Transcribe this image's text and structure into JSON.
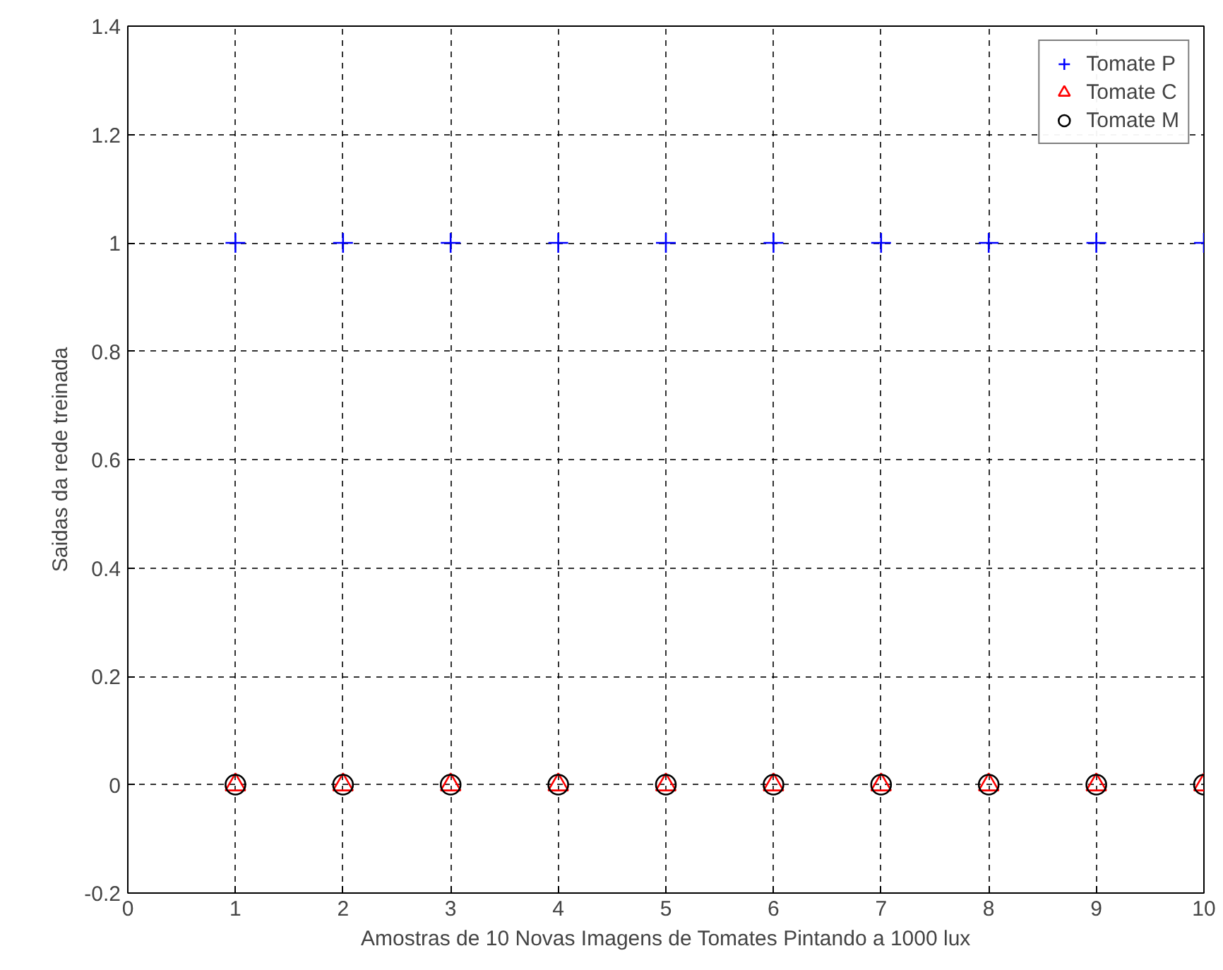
{
  "chart_data": {
    "type": "scatter",
    "xlabel": "Amostras de 10 Novas Imagens de Tomates Pintando a 1000 lux",
    "ylabel": "Saidas da rede treinada",
    "x": [
      1,
      2,
      3,
      4,
      5,
      6,
      7,
      8,
      9,
      10
    ],
    "series": [
      {
        "name": "Tomate P",
        "color": "#0000ff",
        "marker": "cross",
        "values": [
          1,
          1,
          1,
          1,
          1,
          1,
          1,
          1,
          1,
          1
        ]
      },
      {
        "name": "Tomate C",
        "color": "#ff0000",
        "marker": "triangle",
        "values": [
          0,
          0,
          0,
          0,
          0,
          0,
          0,
          0,
          0,
          0
        ]
      },
      {
        "name": "Tomate M",
        "color": "#000000",
        "marker": "circle",
        "values": [
          0,
          0,
          0,
          0,
          0,
          0,
          0,
          0,
          0,
          0
        ]
      }
    ],
    "xlim": [
      0,
      10
    ],
    "xticks": [
      0,
      1,
      2,
      3,
      4,
      5,
      6,
      7,
      8,
      9,
      10
    ],
    "ylim": [
      -0.2,
      1.4
    ],
    "yticks": [
      -0.2,
      0,
      0.2,
      0.4,
      0.6,
      0.8,
      1,
      1.2,
      1.4
    ],
    "grid": true,
    "legend": "top right"
  }
}
